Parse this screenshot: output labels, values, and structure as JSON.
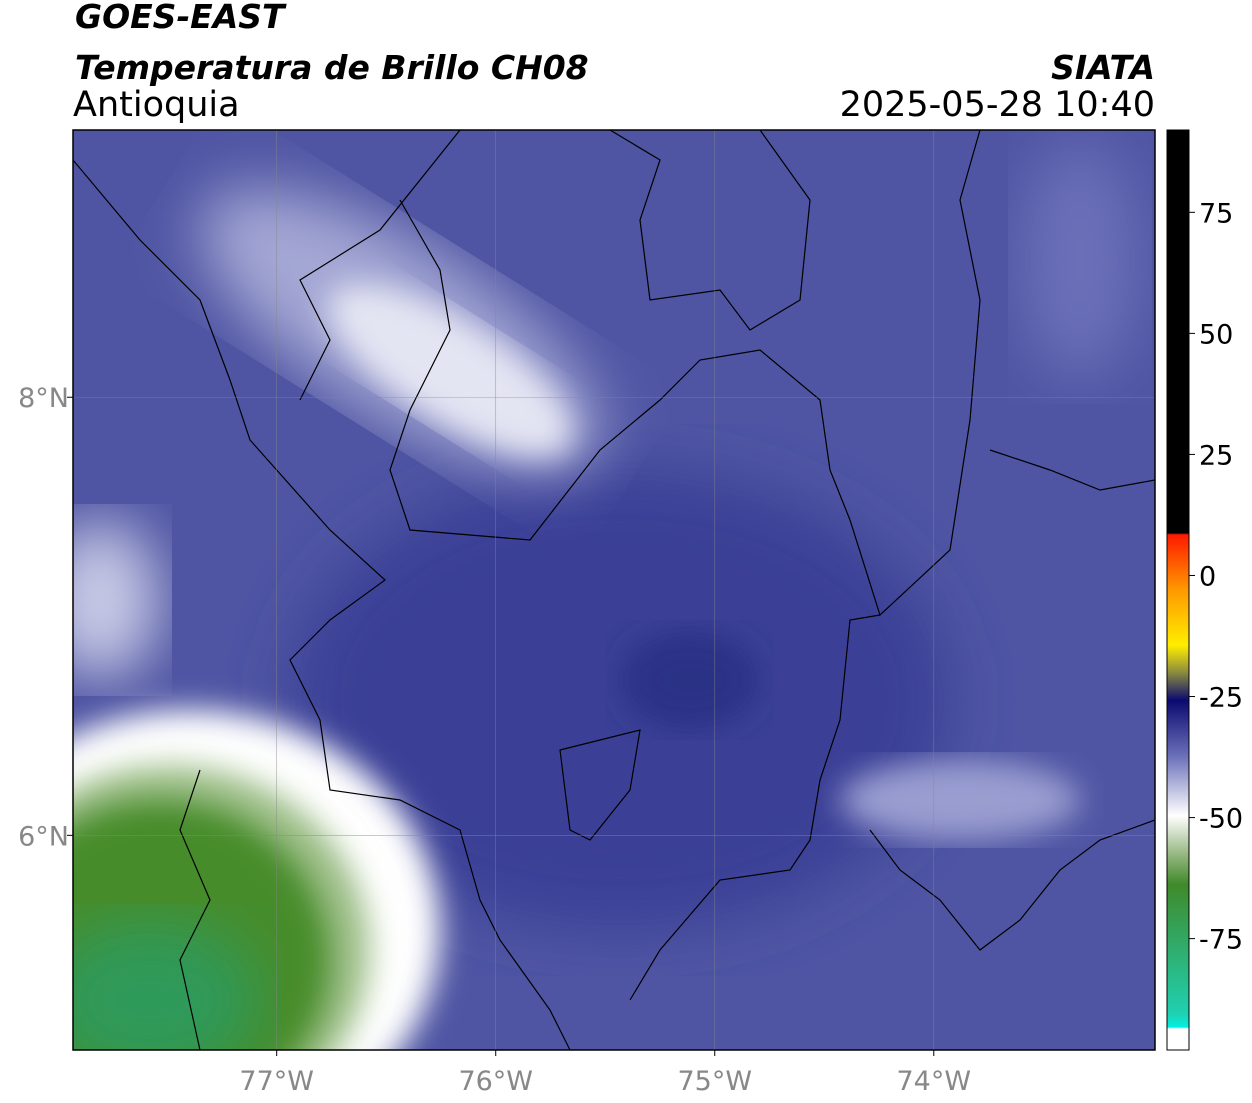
{
  "header": {
    "title": "GOES-EAST",
    "subtitle": "Temperatura de Brillo CH08",
    "region": "Antioquia",
    "source": "SIATA",
    "timestamp": "2025-05-28 10:40"
  },
  "map": {
    "lon_range": [
      -77.93,
      -72.99
    ],
    "lat_range": [
      5.02,
      9.22
    ],
    "lon_ticks": [
      {
        "value": -77,
        "label": "77°W"
      },
      {
        "value": -76,
        "label": "76°W"
      },
      {
        "value": -75,
        "label": "75°W"
      },
      {
        "value": -74,
        "label": "74°W"
      }
    ],
    "lat_ticks": [
      {
        "value": 8,
        "label": "8°N"
      },
      {
        "value": 6,
        "label": "6°N"
      }
    ],
    "grid": true
  },
  "colorbar": {
    "range": [
      -98,
      92
    ],
    "ticks": [
      75,
      50,
      25,
      0,
      -25,
      -50,
      -75
    ]
  }
}
